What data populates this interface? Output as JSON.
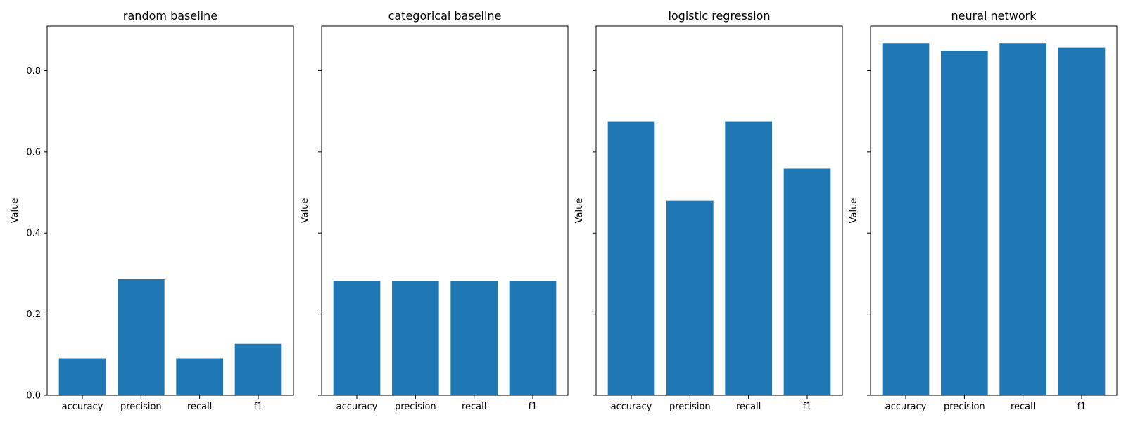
{
  "chart_data": [
    {
      "type": "bar",
      "title": "random baseline",
      "categories": [
        "accuracy",
        "precision",
        "recall",
        "f1"
      ],
      "values": [
        0.091,
        0.286,
        0.091,
        0.127
      ],
      "xlabel": "",
      "ylabel": "Value",
      "ylim": [
        0,
        0.91
      ],
      "yticks": [
        "0.0",
        "0.2",
        "0.4",
        "0.6",
        "0.8"
      ],
      "show_ytick_labels": true
    },
    {
      "type": "bar",
      "title": "categorical baseline",
      "categories": [
        "accuracy",
        "precision",
        "recall",
        "f1"
      ],
      "values": [
        0.282,
        0.282,
        0.282,
        0.282
      ],
      "xlabel": "",
      "ylabel": "Value",
      "ylim": [
        0,
        0.91
      ],
      "yticks": [
        "0.0",
        "0.2",
        "0.4",
        "0.6",
        "0.8"
      ],
      "show_ytick_labels": false
    },
    {
      "type": "bar",
      "title": "logistic regression",
      "categories": [
        "accuracy",
        "precision",
        "recall",
        "f1"
      ],
      "values": [
        0.675,
        0.479,
        0.675,
        0.559
      ],
      "xlabel": "",
      "ylabel": "Value",
      "ylim": [
        0,
        0.91
      ],
      "yticks": [
        "0.0",
        "0.2",
        "0.4",
        "0.6",
        "0.8"
      ],
      "show_ytick_labels": false
    },
    {
      "type": "bar",
      "title": "neural network",
      "categories": [
        "accuracy",
        "precision",
        "recall",
        "f1"
      ],
      "values": [
        0.868,
        0.849,
        0.868,
        0.857
      ],
      "xlabel": "",
      "ylabel": "Value",
      "ylim": [
        0,
        0.91
      ],
      "yticks": [
        "0.0",
        "0.2",
        "0.4",
        "0.6",
        "0.8"
      ],
      "show_ytick_labels": false
    }
  ],
  "colors": {
    "bar": "#1f77b4",
    "axis": "#000000",
    "background": "#ffffff"
  },
  "grid": false,
  "legend": "none"
}
